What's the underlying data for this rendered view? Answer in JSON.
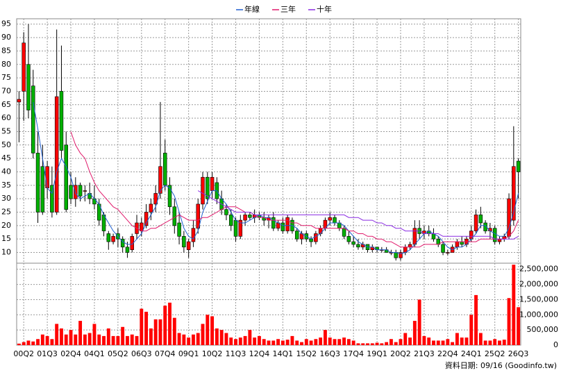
{
  "chart_data": [
    {
      "type": "candlestick",
      "open": [
        66,
        70,
        80,
        72,
        47,
        42,
        34,
        35,
        25,
        70,
        50,
        35,
        30,
        35,
        33,
        32,
        30,
        28,
        24,
        17,
        14,
        17,
        15,
        12,
        11,
        17,
        18,
        20,
        25,
        28,
        32,
        47,
        35,
        27,
        21,
        16,
        11,
        14,
        19,
        28,
        38,
        33,
        36,
        30,
        26,
        24,
        22,
        16,
        22,
        24,
        23,
        24,
        23,
        22,
        23,
        19,
        21,
        18,
        22,
        18,
        15,
        17,
        15,
        14,
        17,
        19,
        22,
        23,
        21,
        19,
        16,
        14,
        13,
        12,
        13,
        11,
        12,
        11,
        11,
        10,
        10,
        8,
        10,
        12,
        13,
        19,
        17,
        18,
        17,
        15,
        13,
        10,
        10,
        12,
        14,
        13,
        15,
        18,
        24,
        21,
        18,
        19,
        14,
        15,
        16,
        22,
        44
      ],
      "high": [
        70,
        92,
        95,
        78,
        55,
        50,
        44,
        42,
        93,
        87,
        55,
        40,
        38,
        36,
        35,
        36,
        35,
        30,
        25,
        18,
        17,
        19,
        16,
        14,
        17,
        24,
        23,
        28,
        30,
        35,
        66,
        52,
        38,
        30,
        25,
        18,
        15,
        22,
        30,
        40,
        40,
        40,
        38,
        33,
        28,
        26,
        23,
        24,
        25,
        25,
        26,
        25,
        25,
        24,
        25,
        22,
        23,
        24,
        23,
        19,
        18,
        18,
        16,
        18,
        20,
        23,
        25,
        24,
        22,
        20,
        18,
        16,
        15,
        14,
        13,
        13,
        12,
        12,
        12,
        11,
        11,
        11,
        13,
        14,
        22,
        22,
        20,
        20,
        19,
        16,
        14,
        11,
        13,
        15,
        16,
        16,
        20,
        26,
        27,
        22,
        21,
        20,
        16,
        17,
        32,
        57,
        45
      ],
      "low": [
        51,
        59,
        60,
        45,
        21,
        24,
        30,
        23,
        24,
        45,
        25,
        28,
        27,
        29,
        29,
        28,
        26,
        20,
        16,
        11,
        13,
        12,
        10,
        8,
        10,
        15,
        16,
        19,
        22,
        25,
        30,
        33,
        24,
        17,
        13,
        10,
        8,
        12,
        17,
        26,
        28,
        30,
        28,
        24,
        22,
        18,
        14,
        15,
        20,
        22,
        21,
        22,
        20,
        19,
        18,
        18,
        17,
        17,
        17,
        14,
        13,
        14,
        12,
        13,
        16,
        18,
        20,
        20,
        18,
        15,
        13,
        12,
        11,
        11,
        10,
        10,
        10,
        10,
        10,
        9,
        7,
        7,
        9,
        11,
        12,
        15,
        15,
        16,
        14,
        12,
        9,
        9,
        10,
        11,
        12,
        12,
        14,
        17,
        19,
        17,
        15,
        13,
        13,
        14,
        15,
        20,
        30
      ],
      "close": [
        67,
        88,
        63,
        47,
        25,
        25,
        42,
        25,
        68,
        48,
        26,
        30,
        35,
        31,
        33,
        30,
        28,
        22,
        18,
        14,
        16,
        15,
        12,
        10,
        16,
        21,
        21,
        25,
        28,
        32,
        42,
        35,
        27,
        20,
        16,
        12,
        14,
        19,
        28,
        38,
        30,
        38,
        30,
        26,
        24,
        20,
        16,
        22,
        24,
        23,
        24,
        23,
        22,
        23,
        19,
        21,
        18,
        23,
        18,
        15,
        17,
        15,
        14,
        17,
        19,
        22,
        23,
        21,
        19,
        16,
        14,
        13,
        12,
        13,
        11,
        12,
        11,
        11,
        10,
        10,
        8,
        10,
        12,
        13,
        19,
        17,
        18,
        17,
        15,
        13,
        10,
        10,
        12,
        14,
        13,
        15,
        18,
        24,
        21,
        18,
        19,
        14,
        15,
        16,
        30,
        42,
        40
      ],
      "up_color": "#ff0000",
      "down_color": "#00b000",
      "series": [
        {
          "name": "年線",
          "color": "#1f5fd0",
          "values": [
            null,
            null,
            null,
            66,
            56,
            45,
            34,
            32,
            40,
            45,
            42,
            38,
            32,
            30,
            31,
            32,
            30,
            28,
            24,
            21,
            18,
            16,
            14,
            13,
            13,
            15,
            17,
            21,
            24,
            27,
            33,
            35,
            34,
            31,
            25,
            19,
            16,
            15,
            18,
            25,
            29,
            33,
            33,
            30,
            28,
            25,
            22,
            21,
            21,
            22,
            23,
            24,
            23,
            23,
            22,
            21,
            20,
            20,
            20,
            19,
            17,
            16,
            15,
            16,
            17,
            19,
            21,
            21,
            21,
            20,
            18,
            16,
            14,
            13,
            12,
            12,
            11,
            11,
            11,
            10,
            10,
            9.5,
            10,
            11,
            13,
            15,
            17,
            18,
            17,
            16,
            14,
            12,
            11,
            12,
            12,
            13,
            15,
            17,
            20,
            20,
            18,
            17,
            16,
            16,
            19,
            25,
            32
          ]
        },
        {
          "name": "三年",
          "color": "#e0186a",
          "values": [
            null,
            null,
            null,
            null,
            null,
            null,
            null,
            null,
            null,
            null,
            null,
            55,
            50,
            47,
            45,
            40,
            36,
            33,
            31,
            29,
            27,
            26,
            24,
            22,
            20,
            19,
            18,
            18,
            19,
            19,
            20,
            21,
            22,
            23,
            24,
            23,
            22,
            22,
            22,
            23,
            23,
            24,
            25,
            26,
            27,
            27,
            27,
            26,
            25,
            25,
            24,
            23,
            23,
            22,
            22,
            22,
            22,
            22,
            21,
            21,
            20,
            20,
            20,
            19,
            19,
            19,
            19,
            19,
            19,
            19,
            18,
            18,
            17,
            17,
            16,
            16,
            15,
            15,
            14,
            14,
            13,
            12,
            12,
            12,
            12,
            12,
            13,
            13,
            13,
            13,
            14,
            14,
            14,
            14,
            14,
            14,
            14,
            14,
            15,
            15,
            15,
            15,
            15,
            15,
            16,
            18,
            22
          ]
        },
        {
          "name": "十年",
          "color": "#8a2be2",
          "values": [
            null,
            null,
            null,
            null,
            null,
            null,
            null,
            null,
            null,
            null,
            null,
            null,
            null,
            null,
            null,
            null,
            null,
            null,
            null,
            null,
            null,
            null,
            null,
            null,
            null,
            null,
            null,
            null,
            null,
            null,
            null,
            null,
            null,
            null,
            null,
            null,
            null,
            null,
            33,
            32,
            31,
            30,
            29,
            28,
            27,
            26,
            25,
            25,
            25,
            25,
            24,
            24,
            24,
            24,
            24,
            24,
            24,
            24,
            24,
            24,
            24,
            24,
            24,
            24,
            24,
            24,
            24,
            24,
            24,
            24,
            23,
            23,
            23,
            22,
            22,
            22,
            21,
            21,
            20,
            20,
            19,
            19,
            18,
            18,
            18,
            18,
            17,
            17,
            17,
            17,
            16,
            16,
            16,
            16,
            16,
            16,
            16,
            16,
            16,
            16,
            16,
            15,
            15,
            15,
            15,
            15,
            16
          ]
        }
      ],
      "ylim": [
        6,
        97
      ],
      "yticks": [
        10,
        15,
        20,
        25,
        30,
        35,
        40,
        45,
        50,
        55,
        60,
        65,
        70,
        75,
        80,
        85,
        90,
        95
      ],
      "grid": true
    },
    {
      "type": "bar",
      "categories": [
        null,
        "00Q2",
        null,
        null,
        null,
        null,
        "01Q3",
        null,
        null,
        null,
        null,
        "02Q4",
        null,
        null,
        null,
        null,
        "04Q1",
        null,
        null,
        null,
        null,
        "05Q2",
        null,
        null,
        null,
        null,
        "06Q3",
        null,
        null,
        null,
        null,
        "07Q4",
        null,
        null,
        null,
        null,
        "09Q1",
        null,
        null,
        null,
        null,
        "10Q2",
        null,
        null,
        null,
        null,
        "11Q3",
        null,
        null,
        null,
        null,
        "12Q4",
        null,
        null,
        null,
        null,
        "14Q1",
        null,
        null,
        null,
        null,
        "15Q2",
        null,
        null,
        null,
        null,
        "16Q3",
        null,
        null,
        null,
        null,
        "17Q4",
        null,
        null,
        null,
        null,
        "19Q1",
        null,
        null,
        null,
        null,
        "20Q2",
        null,
        null,
        null,
        null,
        "21Q3",
        null,
        null,
        null,
        null,
        "22Q4",
        null,
        null,
        null,
        null,
        "24Q1",
        null,
        null,
        null,
        null,
        "25Q2",
        null,
        null,
        null,
        null,
        "26Q3"
      ],
      "values": [
        50000,
        100000,
        150000,
        120000,
        200000,
        350000,
        300000,
        200000,
        700000,
        550000,
        350000,
        500000,
        350000,
        800000,
        350000,
        400000,
        700000,
        350000,
        300000,
        550000,
        300000,
        300000,
        600000,
        300000,
        350000,
        300000,
        1200000,
        1100000,
        550000,
        850000,
        850000,
        1300000,
        1400000,
        900000,
        400000,
        350000,
        250000,
        350000,
        400000,
        700000,
        1000000,
        950000,
        550000,
        500000,
        400000,
        250000,
        200000,
        250000,
        300000,
        500000,
        250000,
        300000,
        200000,
        150000,
        150000,
        200000,
        150000,
        180000,
        300000,
        150000,
        100000,
        200000,
        150000,
        200000,
        250000,
        500000,
        250000,
        200000,
        200000,
        250000,
        200000,
        150000,
        60000,
        60000,
        60000,
        60000,
        80000,
        60000,
        100000,
        200000,
        100000,
        200000,
        400000,
        250000,
        800000,
        1500000,
        300000,
        250000,
        150000,
        150000,
        150000,
        200000,
        100000,
        400000,
        250000,
        250000,
        1000000,
        1650000,
        400000,
        150000,
        150000,
        200000,
        150000,
        180000,
        1550000,
        2650000,
        1250000
      ],
      "color": "#ff0000",
      "ylim": [
        0,
        2700000
      ],
      "yticks": [
        0,
        {
          "value": 500000,
          "label": "500,000"
        },
        {
          "value": 1000000,
          "label": "1,000,000"
        },
        {
          "value": 1500000,
          "label": "1,500,000"
        },
        {
          "value": 2000000,
          "label": "2,000,000"
        },
        {
          "value": 2500000,
          "label": "2,500,000"
        }
      ],
      "grid": true,
      "source": "資料日期: 09/16  (Goodinfo.tw)"
    }
  ]
}
